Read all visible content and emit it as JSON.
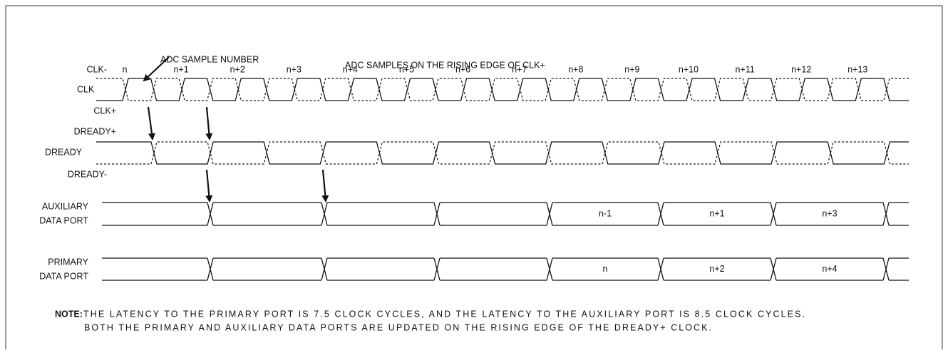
{
  "annotations": {
    "sample_number": "ADC SAMPLE NUMBER",
    "rising_edge": "ADC SAMPLES ON THE RISING EDGE OF CLK+"
  },
  "signals": {
    "clk_minus": "CLK-",
    "clk": "CLK",
    "clk_plus": "CLK+",
    "dready_plus": "DREADY+",
    "dready": "DREADY",
    "dready_minus": "DREADY-"
  },
  "samples": [
    "n",
    "n+1",
    "n+2",
    "n+3",
    "n+4",
    "n+5",
    "n+6",
    "n+7",
    "n+8",
    "n+9",
    "n+10",
    "n+11",
    "n+12",
    "n+13"
  ],
  "auxiliary_port": {
    "label": [
      "AUXILIARY",
      "DATA PORT"
    ],
    "data": [
      "n-1",
      "n+1",
      "n+3"
    ]
  },
  "primary_port": {
    "label": [
      "PRIMARY",
      "DATA PORT"
    ],
    "data": [
      "n",
      "n+2",
      "n+4"
    ]
  },
  "note": {
    "label": "NOTE:",
    "lines": [
      "THE LATENCY TO THE PRIMARY PORT IS 7.5 CLOCK CYCLES, AND THE LATENCY TO THE AUXILIARY PORT IS 8.5 CLOCK CYCLES.",
      "BOTH THE PRIMARY AND AUXILIARY DATA PORTS ARE UPDATED ON THE RISING EDGE OF THE DREADY+ CLOCK."
    ]
  }
}
